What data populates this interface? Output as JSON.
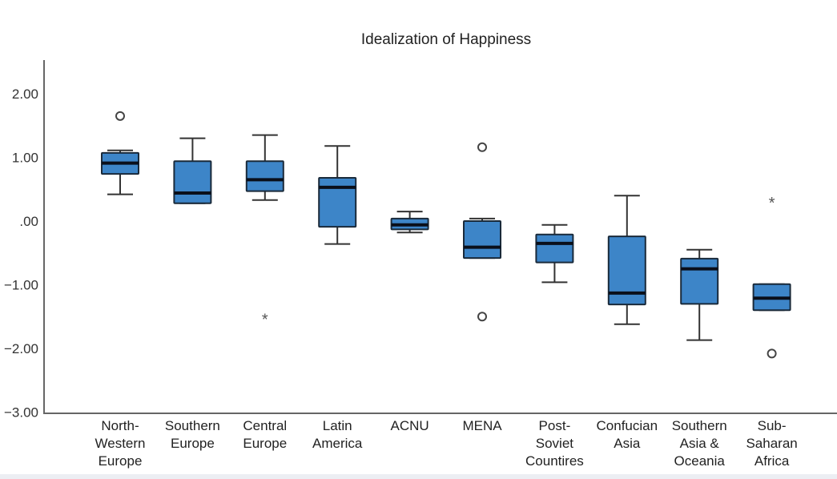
{
  "chart_data": {
    "type": "boxplot",
    "title": "Idealization of Happiness",
    "xlabel": "",
    "ylabel": "",
    "ylim": [
      -3,
      2.3
    ],
    "y_ticks": [
      {
        "value": 2,
        "label": "2.00"
      },
      {
        "value": 1,
        "label": "1.00"
      },
      {
        "value": 0,
        "label": ".00"
      },
      {
        "value": -1,
        "label": "−1.00"
      },
      {
        "value": -2,
        "label": "−2.00"
      },
      {
        "value": -3,
        "label": "−3.00"
      }
    ],
    "grid": false,
    "box_color": "#3d85c8",
    "categories": [
      {
        "label": [
          "North-",
          "Western",
          "Europe"
        ],
        "whisker_high": 1.11,
        "q3": 1.07,
        "median": 0.91,
        "q1": 0.74,
        "whisker_low": 0.42,
        "outliers": [
          1.65
        ],
        "extremes": []
      },
      {
        "label": [
          "Southern",
          "Europe"
        ],
        "whisker_high": 1.3,
        "q3": 0.94,
        "median": 0.44,
        "q1": 0.28,
        "whisker_low": 0.28,
        "outliers": [],
        "extremes": []
      },
      {
        "label": [
          "Central",
          "Europe"
        ],
        "whisker_high": 1.35,
        "q3": 0.94,
        "median": 0.65,
        "q1": 0.47,
        "whisker_low": 0.33,
        "outliers": [],
        "extremes": [
          -1.5
        ]
      },
      {
        "label": [
          "Latin",
          "America"
        ],
        "whisker_high": 1.18,
        "q3": 0.68,
        "median": 0.53,
        "q1": -0.09,
        "whisker_low": -0.36,
        "outliers": [],
        "extremes": []
      },
      {
        "label": [
          "ACNU"
        ],
        "whisker_high": 0.15,
        "q3": 0.04,
        "median": -0.06,
        "q1": -0.13,
        "whisker_low": -0.18,
        "outliers": [],
        "extremes": []
      },
      {
        "label": [
          "MENA"
        ],
        "whisker_high": 0.04,
        "q3": 0.0,
        "median": -0.41,
        "q1": -0.58,
        "whisker_low": -0.58,
        "outliers": [
          1.16,
          -1.5
        ],
        "extremes": []
      },
      {
        "label": [
          "Post-",
          "Soviet",
          "Countires"
        ],
        "whisker_high": -0.06,
        "q3": -0.21,
        "median": -0.35,
        "q1": -0.65,
        "whisker_low": -0.96,
        "outliers": [],
        "extremes": []
      },
      {
        "label": [
          "Confucian",
          "Asia"
        ],
        "whisker_high": 0.4,
        "q3": -0.24,
        "median": -1.13,
        "q1": -1.31,
        "whisker_low": -1.62,
        "outliers": [],
        "extremes": []
      },
      {
        "label": [
          "Southern",
          "Asia &",
          "Oceania"
        ],
        "whisker_high": -0.45,
        "q3": -0.59,
        "median": -0.75,
        "q1": -1.3,
        "whisker_low": -1.87,
        "outliers": [],
        "extremes": []
      },
      {
        "label": [
          "Sub-",
          "Saharan",
          "Africa"
        ],
        "whisker_high": -0.99,
        "q3": -0.99,
        "median": -1.21,
        "q1": -1.4,
        "whisker_low": -1.4,
        "outliers": [
          -2.08
        ],
        "extremes": [
          0.33
        ]
      }
    ]
  }
}
